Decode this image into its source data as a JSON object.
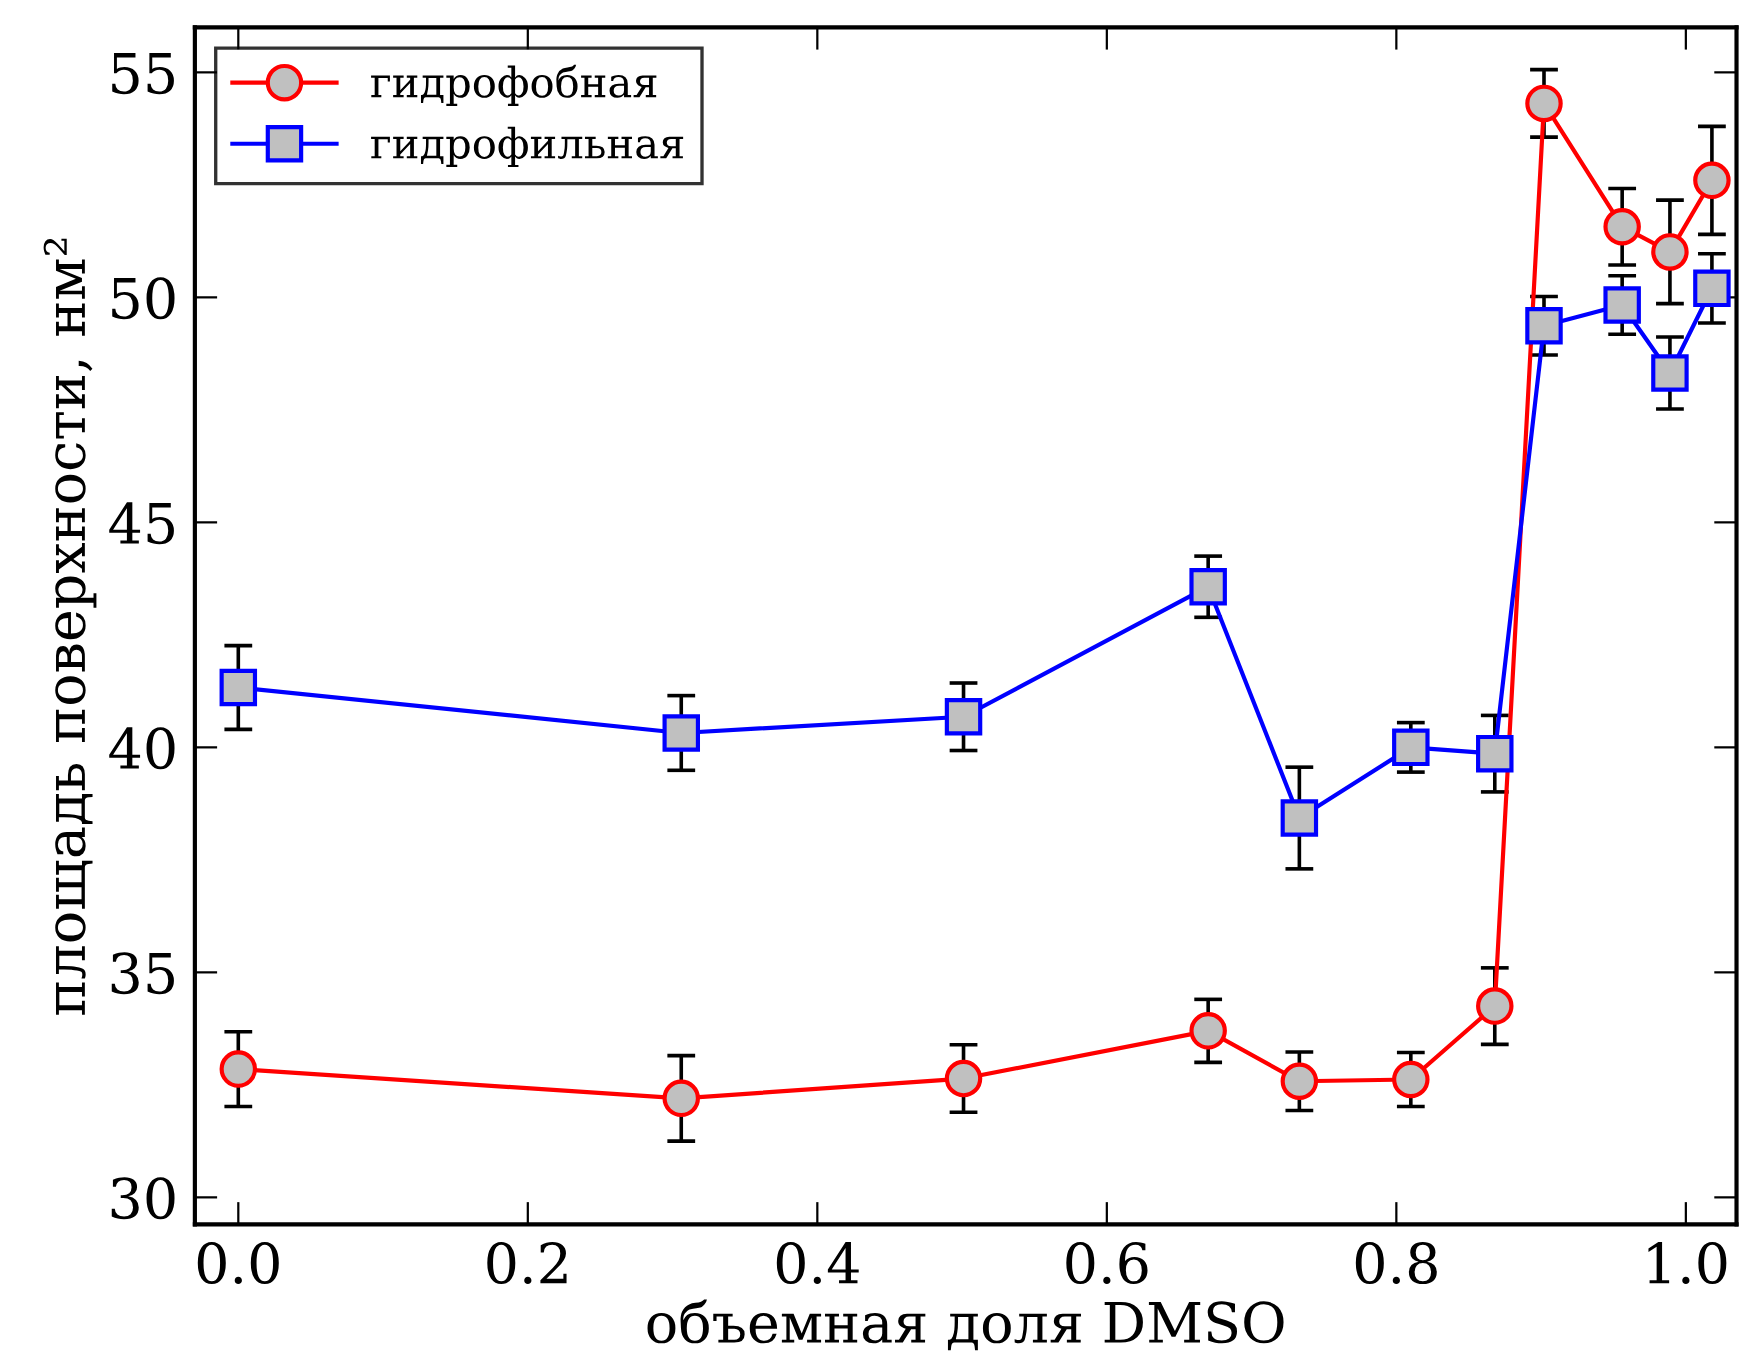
{
  "chart_data": {
    "type": "line",
    "xlabel": "объемная доля DMSO",
    "ylabel": "площадь поверхности, нм²",
    "x": [
      0.0,
      0.306,
      0.501,
      0.67,
      0.733,
      0.81,
      0.868,
      0.902,
      0.956,
      0.989,
      1.018
    ],
    "series": [
      {
        "name": "гидрофобная",
        "color": "#ff0000",
        "marker": "circle",
        "values": [
          32.85,
          32.2,
          32.64,
          33.7,
          32.58,
          32.62,
          34.25,
          54.31,
          51.57,
          51.01,
          52.6
        ],
        "errors": [
          0.83,
          0.95,
          0.75,
          0.7,
          0.65,
          0.6,
          0.85,
          0.75,
          0.85,
          1.15,
          1.2
        ]
      },
      {
        "name": "гидрофильная",
        "color": "#0000ff",
        "marker": "square",
        "values": [
          41.33,
          40.32,
          40.68,
          43.57,
          38.43,
          40.0,
          39.86,
          49.37,
          49.83,
          48.32,
          50.2
        ],
        "errors": [
          0.93,
          0.83,
          0.75,
          0.68,
          1.13,
          0.55,
          0.85,
          0.65,
          0.65,
          0.8,
          0.77
        ]
      }
    ],
    "xlim": [
      -0.03,
      1.035
    ],
    "xticks": [
      {
        "value": 0.0,
        "label": "0.0"
      },
      0.2,
      0.4,
      0.6,
      0.8,
      {
        "value": 1.0,
        "label": "1.0"
      }
    ],
    "ylim": [
      29.4,
      56.0
    ],
    "yticks": [
      30,
      35,
      40,
      45,
      50,
      55
    ],
    "legend": "top left",
    "grid": false
  }
}
